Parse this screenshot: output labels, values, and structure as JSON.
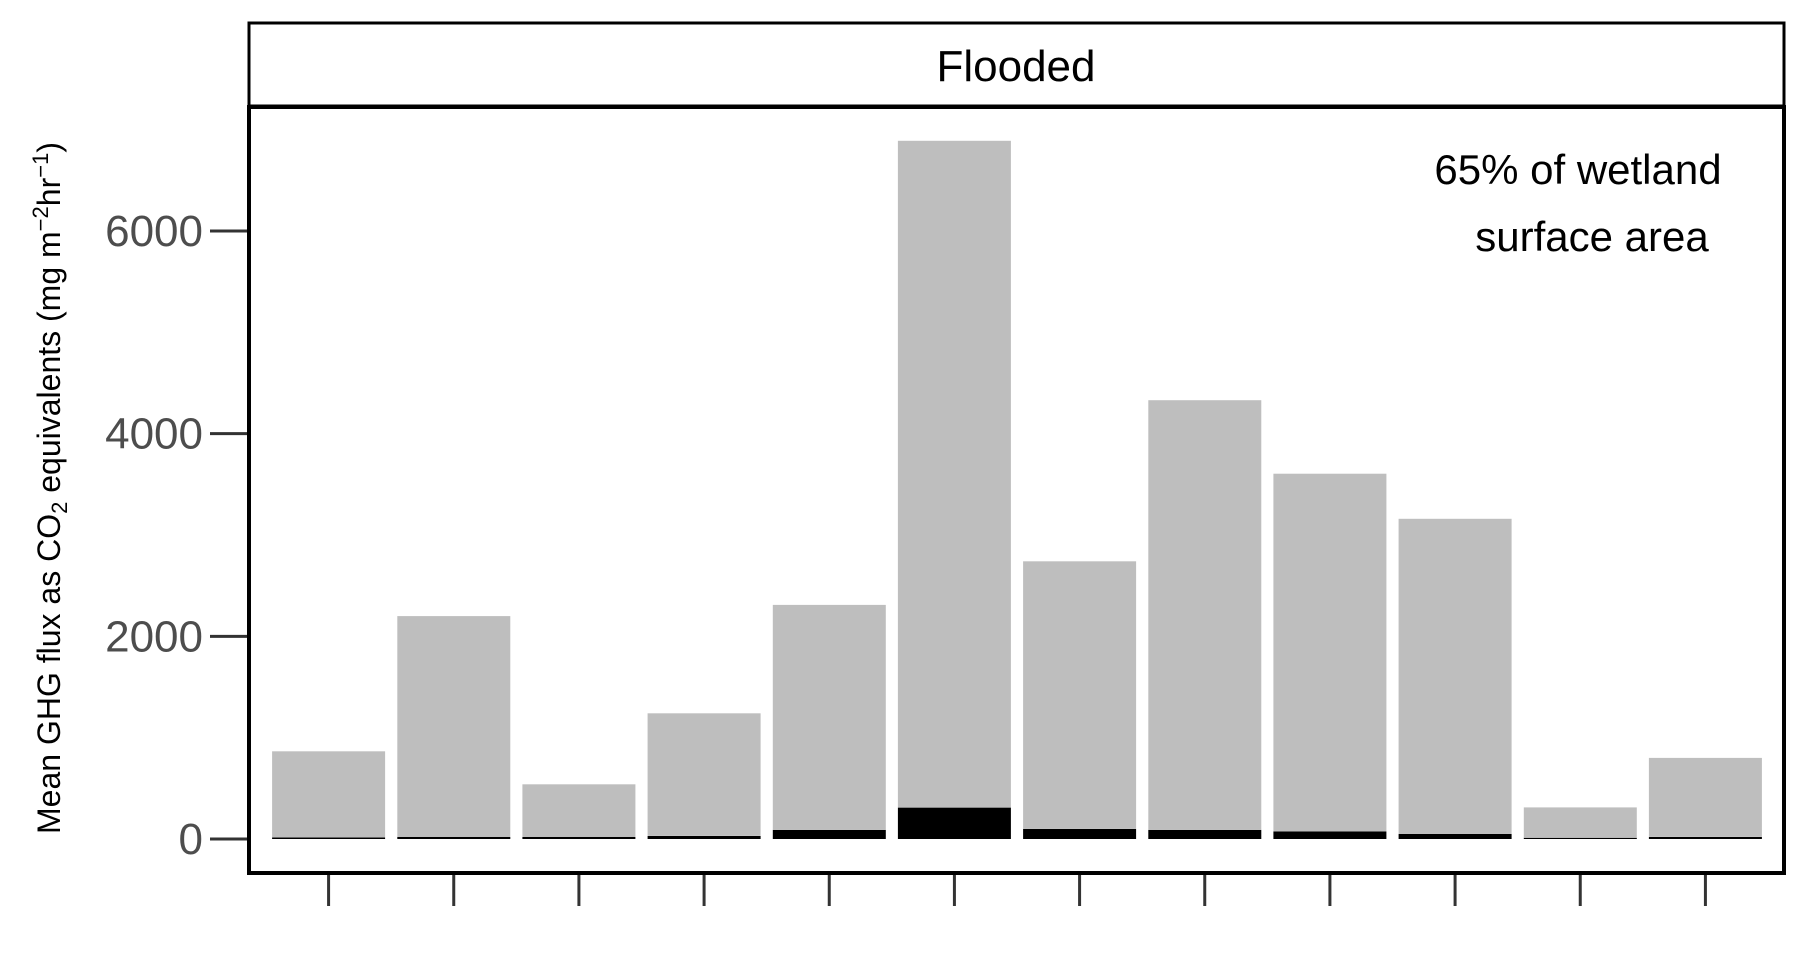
{
  "chart_data": {
    "type": "bar",
    "stacked": true,
    "panel_title": "Flooded",
    "annotation": [
      "65% of wetland",
      "surface area"
    ],
    "ylabel": "Mean GHG flux as CO₂ equivalents (mg m⁻²hr⁻¹)",
    "ylabel_parts": {
      "main": "Mean GHG flux as CO",
      "co2_sub": "2",
      "middle": " equivalents (mg m",
      "sup1": "−2",
      "hr": "hr",
      "sup2": "−1",
      "close": ")"
    },
    "ylim": [
      -700,
      8000
    ],
    "yticks": [
      0,
      2000,
      4000,
      6000
    ],
    "ytick_labels": [
      "0",
      "2000",
      "4000",
      "6000"
    ],
    "n_categories": 12,
    "grid": false,
    "series": [
      {
        "color": "#000000",
        "values": [
          15,
          20,
          20,
          30,
          90,
          310,
          100,
          90,
          75,
          50,
          12,
          20
        ]
      },
      {
        "color": "#bebebe",
        "values": [
          850,
          2180,
          520,
          1210,
          2220,
          6580,
          2640,
          4240,
          3530,
          3110,
          300,
          780
        ]
      }
    ],
    "colors": {
      "background": "#ffffff",
      "frame": "#000000",
      "tick_label": "#4d4d4d",
      "text": "#000000"
    }
  }
}
